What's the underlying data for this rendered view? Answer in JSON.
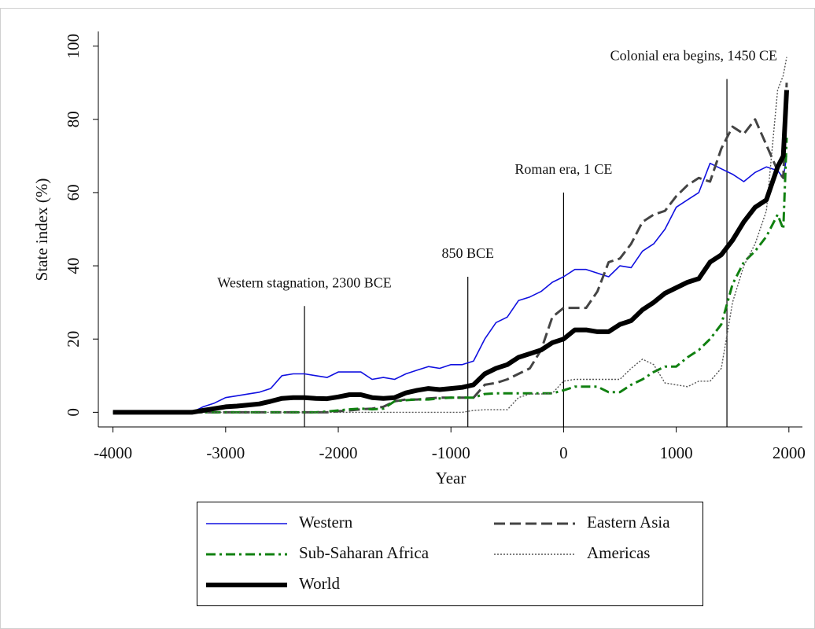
{
  "chart_data": {
    "type": "line",
    "xlabel": "Year",
    "ylabel": "State index (%)",
    "xlim": [
      -4130,
      2120
    ],
    "ylim": [
      -4,
      104
    ],
    "xticks": [
      -4000,
      -3000,
      -2000,
      -1000,
      0,
      1000,
      2000
    ],
    "yticks": [
      0,
      20,
      40,
      60,
      80,
      100
    ],
    "x": [
      -4000,
      -3900,
      -3800,
      -3700,
      -3600,
      -3500,
      -3400,
      -3300,
      -3200,
      -3100,
      -3000,
      -2900,
      -2800,
      -2700,
      -2600,
      -2500,
      -2400,
      -2300,
      -2200,
      -2100,
      -2000,
      -1900,
      -1800,
      -1700,
      -1600,
      -1500,
      -1400,
      -1300,
      -1200,
      -1100,
      -1000,
      -900,
      -800,
      -700,
      -600,
      -500,
      -400,
      -300,
      -200,
      -100,
      0,
      100,
      200,
      300,
      400,
      500,
      600,
      700,
      800,
      900,
      1000,
      1100,
      1200,
      1300,
      1400,
      1500,
      1600,
      1700,
      1800,
      1900,
      1950,
      1980
    ],
    "series": [
      {
        "name": "Western",
        "color": "#1010e0",
        "style": "solid",
        "values": [
          0,
          0,
          0,
          0,
          0,
          0,
          0,
          0,
          1.5,
          2.5,
          4,
          4.5,
          5,
          5.5,
          6.5,
          10,
          10.5,
          10.5,
          10,
          9.5,
          11,
          11,
          11,
          9,
          9.5,
          9,
          10.5,
          11.5,
          12.5,
          12,
          13,
          13,
          14,
          20,
          24.5,
          26,
          30.5,
          31.5,
          33,
          35.5,
          37,
          39,
          39,
          38,
          37,
          40,
          39.5,
          44,
          46,
          50,
          56,
          58,
          60,
          68,
          66.5,
          65,
          63,
          65.5,
          67,
          66,
          64,
          70
        ]
      },
      {
        "name": "Eastern Asia",
        "color": "#444444",
        "style": "dashed",
        "values": [
          0,
          0,
          0,
          0,
          0,
          0,
          0,
          0,
          0,
          0,
          0,
          0,
          0,
          0,
          0,
          0,
          0,
          0,
          0,
          0,
          0.3,
          0.5,
          0.8,
          1,
          1.5,
          3,
          3.5,
          3.5,
          3.8,
          4,
          4,
          4,
          4,
          7.5,
          8,
          9,
          10.5,
          12,
          17,
          26,
          28.5,
          28.5,
          28.5,
          33,
          41,
          42,
          46,
          52,
          54,
          55,
          59,
          62,
          64,
          63,
          72,
          78,
          76,
          80,
          73,
          66,
          64,
          90
        ]
      },
      {
        "name": "Sub-Saharan Africa",
        "color": "#108010",
        "style": "dash-dot",
        "values": [
          0,
          0,
          0,
          0,
          0,
          0,
          0,
          0,
          0,
          0,
          0,
          0,
          0,
          0,
          0,
          0,
          0,
          0,
          0,
          0.2,
          0.5,
          0.8,
          1,
          0.8,
          1,
          3,
          3.3,
          3.5,
          3.5,
          3.8,
          4,
          4,
          4,
          5,
          5.2,
          5.2,
          5.2,
          5.2,
          5.2,
          5.2,
          6,
          7,
          7,
          7,
          5.5,
          5.5,
          7.5,
          9,
          11,
          12.5,
          12.5,
          15,
          17,
          20,
          24,
          35,
          41,
          44,
          48,
          54,
          50,
          75
        ]
      },
      {
        "name": "Americas",
        "color": "#555555",
        "style": "dotted",
        "values": [
          0,
          0,
          0,
          0,
          0,
          0,
          0,
          0,
          0,
          0,
          0,
          0,
          0,
          0,
          0,
          0,
          0,
          0,
          0,
          0,
          0,
          0,
          0,
          0,
          0,
          0,
          0,
          0,
          0,
          0,
          0,
          0,
          0.5,
          0.7,
          0.7,
          0.7,
          4,
          5,
          5,
          5.2,
          8.5,
          9,
          9,
          9,
          9,
          9,
          12,
          14.5,
          13,
          8,
          7.5,
          7,
          8.5,
          8.5,
          12,
          30,
          40,
          46,
          55,
          88,
          92,
          97
        ]
      },
      {
        "name": "World",
        "color": "#000000",
        "style": "bold",
        "values": [
          0,
          0,
          0,
          0,
          0,
          0,
          0,
          0,
          0.5,
          1,
          1.5,
          1.7,
          2,
          2.3,
          3,
          3.8,
          4,
          4,
          3.8,
          3.7,
          4.2,
          4.8,
          4.8,
          4,
          3.8,
          4,
          5.3,
          6,
          6.5,
          6.2,
          6.5,
          6.8,
          7.5,
          10.5,
          12,
          13,
          15,
          16,
          17,
          19,
          20,
          22.5,
          22.5,
          22,
          22,
          24,
          25,
          28,
          30,
          32.5,
          34,
          35.5,
          36.5,
          41,
          43,
          47,
          52,
          56,
          58,
          67,
          70,
          88
        ]
      }
    ],
    "annotations": [
      {
        "text": "Western stagnation, 2300 BCE",
        "x": -2300,
        "y": 29
      },
      {
        "text": "850 BCE",
        "x": -850,
        "y": 37
      },
      {
        "text": "Roman era, 1 CE",
        "x": 0,
        "y": 60
      },
      {
        "text": "Colonial era begins, 1450 CE",
        "x": 1450,
        "y": 91
      }
    ]
  }
}
